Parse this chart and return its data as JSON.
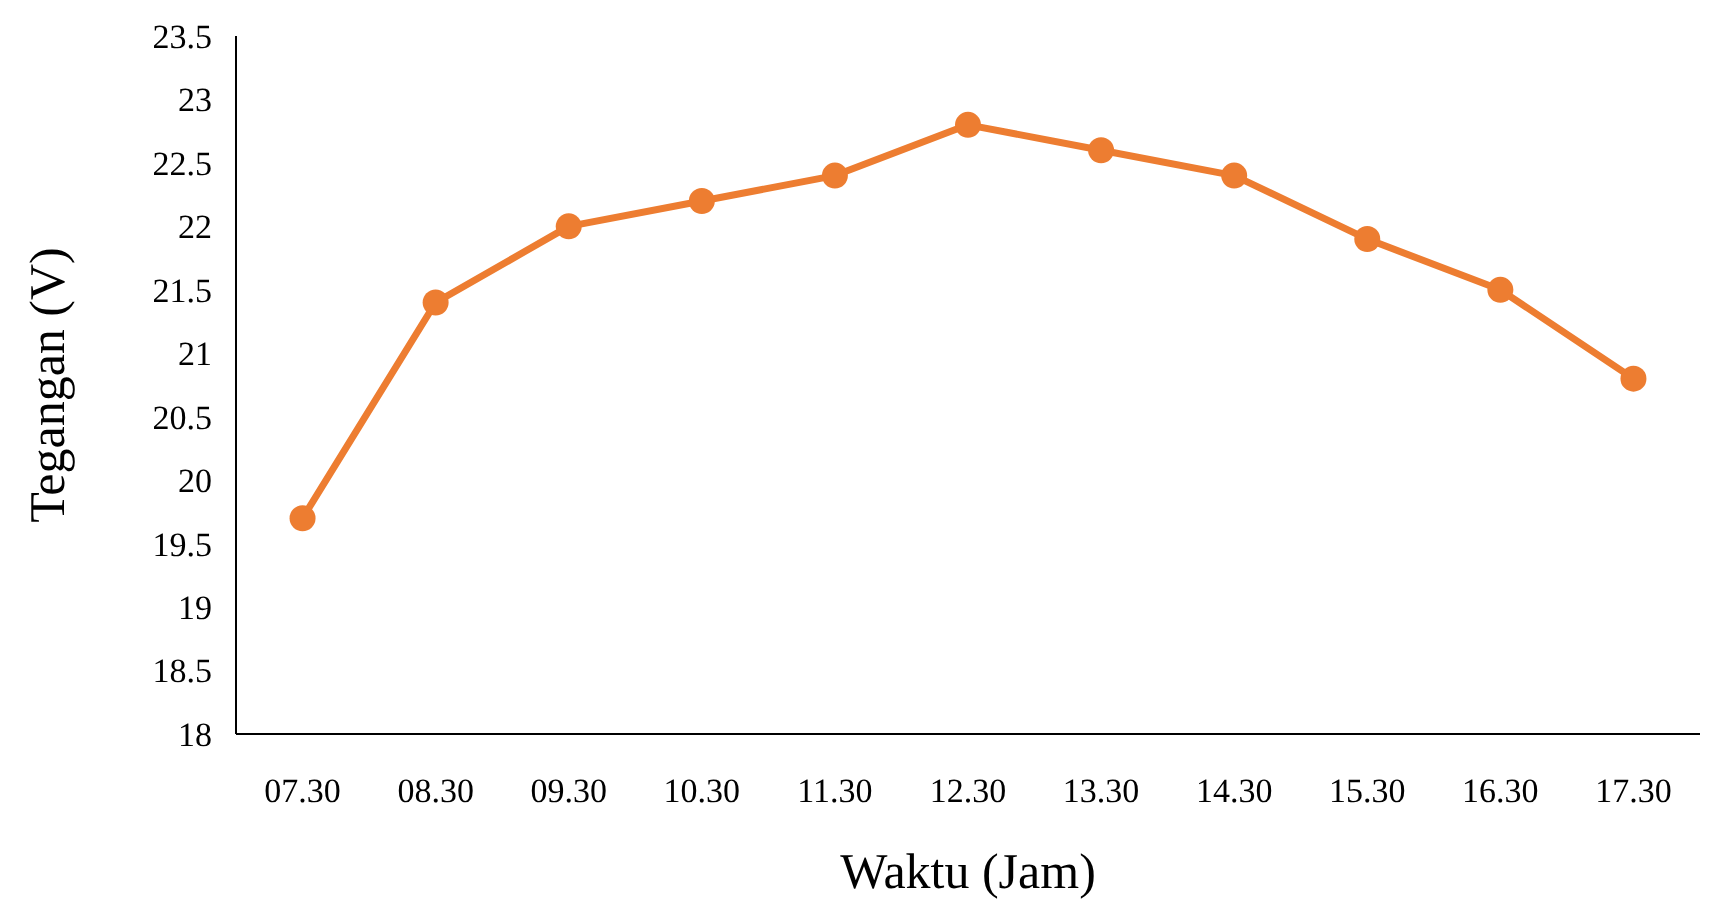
{
  "chart_data": {
    "type": "line",
    "xlabel": "Waktu (Jam)",
    "ylabel": "Tegangan (V)",
    "categories": [
      "07.30",
      "08.30",
      "09.30",
      "10.30",
      "11.30",
      "12.30",
      "13.30",
      "14.30",
      "15.30",
      "16.30",
      "17.30"
    ],
    "series": [
      {
        "color": "#ed7d31",
        "values": [
          19.7,
          21.4,
          22.0,
          22.2,
          22.4,
          22.8,
          22.6,
          22.4,
          21.9,
          21.5,
          20.8
        ]
      }
    ],
    "ylim": [
      18,
      23.5
    ],
    "yticks": [
      18,
      18.5,
      19,
      19.5,
      20,
      20.5,
      21,
      21.5,
      22,
      22.5,
      23,
      23.5
    ],
    "grid": false,
    "marker": "circle",
    "line_style": "solid"
  }
}
